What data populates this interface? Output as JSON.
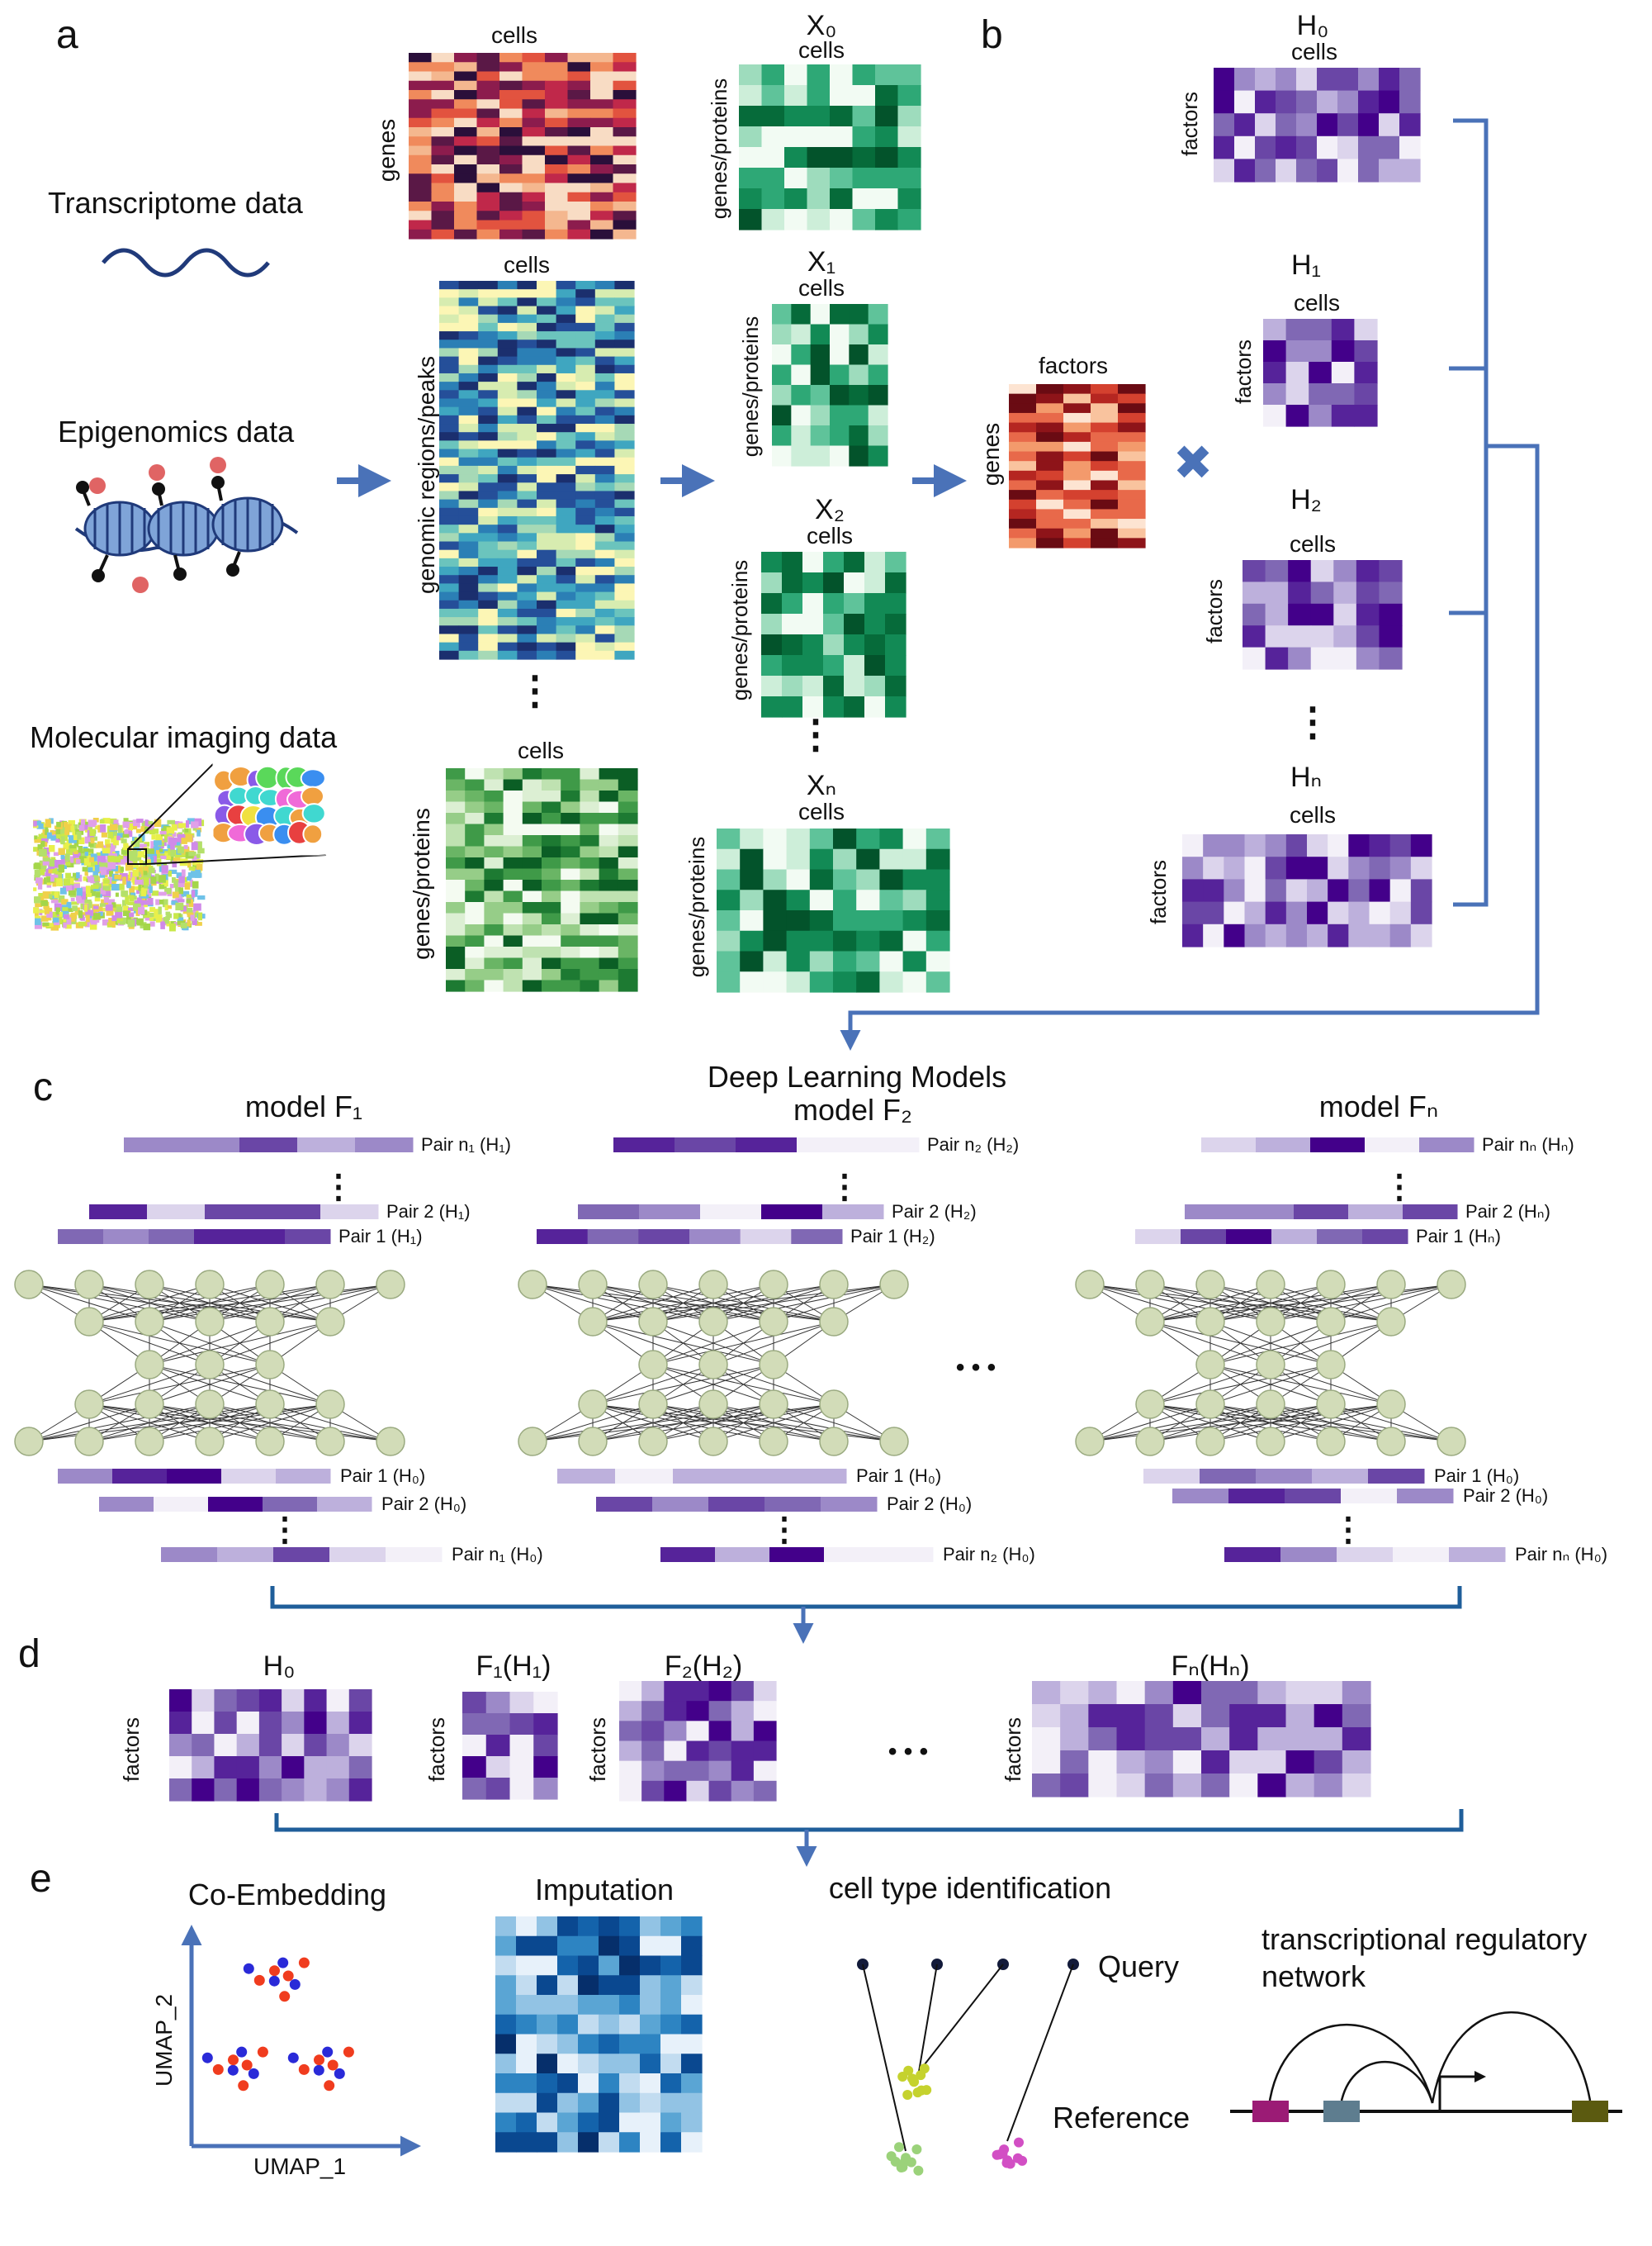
{
  "panel_labels": {
    "a": "a",
    "b": "b",
    "c": "c",
    "d": "d",
    "e": "e"
  },
  "panel_a": {
    "transcriptome_label": "Transcriptome data",
    "epigenomics_label": "Epigenomics data",
    "imaging_label": "Molecular imaging data",
    "raw_cells_label": "cells",
    "raw_genes_label": "genes",
    "raw_peaks_label": "genomic regions/peaks",
    "raw_gp_label": "genes/proteins",
    "x0": "X₀",
    "x1": "X₁",
    "x2": "X₂",
    "xn": "Xₙ",
    "x_cells_label": "cells",
    "x_gp_label": "genes/proteins",
    "ellipsis": "⋮"
  },
  "panel_b": {
    "w_cols_label": "factors",
    "w_rows_label": "genes",
    "h0": "H₀",
    "h1": "H₁",
    "h2": "H₂",
    "hn": "Hₙ",
    "h_cells_label": "cells",
    "h_factors_label": "factors",
    "multiply_symbol": "✖"
  },
  "panel_c": {
    "title": "Deep Learning Models",
    "model_f1": "model F₁",
    "model_f2": "model F₂",
    "model_fn": "model Fₙ",
    "f1_top": [
      "Pair n₁ (H₁)",
      "Pair 2 (H₁)",
      "Pair 1 (H₁)"
    ],
    "f2_top": [
      "Pair n₂ (H₂)",
      "Pair 2 (H₂)",
      "Pair 1 (H₂)"
    ],
    "fn_top": [
      "Pair nₙ (Hₙ)",
      "Pair 2 (Hₙ)",
      "Pair 1 (Hₙ)"
    ],
    "f1_bottom": [
      "Pair 1 (H₀)",
      "Pair 2 (H₀)",
      "Pair n₁ (H₀)"
    ],
    "f2_bottom": [
      "Pair 1 (H₀)",
      "Pair 2 (H₀)",
      "Pair n₂ (H₀)"
    ],
    "fn_bottom": [
      "Pair 1 (H₀)",
      "Pair 2 (H₀)",
      "Pair nₙ (H₀)"
    ],
    "ellipsis": "• • •"
  },
  "panel_d": {
    "h0": "H₀",
    "f1h1": "F₁(H₁)",
    "f2h2": "F₂(H₂)",
    "fnhn": "Fₙ(Hₙ)",
    "factors_label": "factors",
    "ellipsis": "• • •"
  },
  "panel_e": {
    "coembedding_title": "Co-Embedding",
    "umap_x": "UMAP_1",
    "umap_y": "UMAP_2",
    "imputation_title": "Imputation",
    "celltype_title": "cell type identification",
    "query_label": "Query",
    "reference_label": "Reference",
    "trn_title_line1": "transcriptional regulatory",
    "trn_title_line2": "network"
  },
  "colors": {
    "arrow": "#4a72b8",
    "bracket": "#1f5e9a",
    "purple": "#4b0c8c",
    "green": "#0a7a3c",
    "node": "#d2dcb8"
  }
}
